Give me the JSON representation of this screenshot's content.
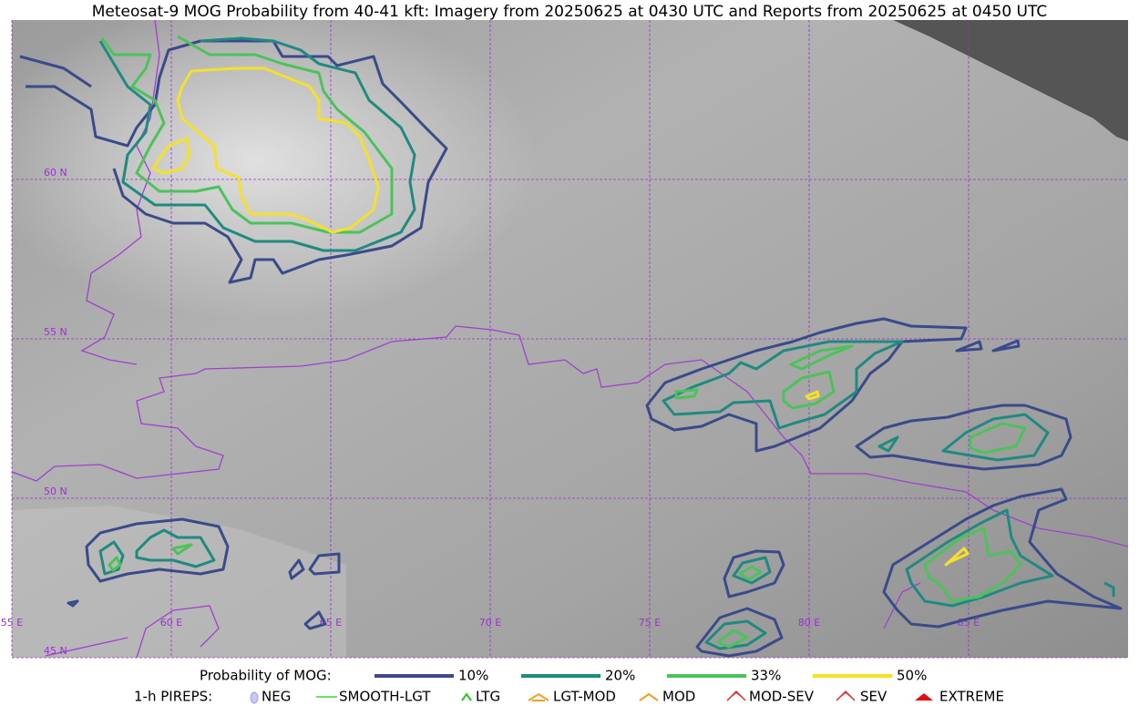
{
  "title": "Meteosat-9 MOG Probability from 40-41 kft: Imagery from 20250625 at 0430 UTC and Reports from 20250625 at 0450 UTC",
  "map": {
    "lat_labels": [
      "60 N",
      "55 N",
      "50 N",
      "45 N"
    ],
    "lon_labels": [
      "55 E",
      "60 E",
      "65 E",
      "70 E",
      "75 E",
      "80 E",
      "85 E"
    ]
  },
  "legend": {
    "probability": {
      "label": "Probability of MOG:",
      "items": [
        {
          "label": "10%",
          "color": "#3a4a8a"
        },
        {
          "label": "20%",
          "color": "#1f8a80"
        },
        {
          "label": "33%",
          "color": "#4cc35a"
        },
        {
          "label": "50%",
          "color": "#f5e02a"
        }
      ]
    },
    "pireps": {
      "label": "1-h PIREPS:",
      "items": [
        "NEG",
        "SMOOTH-LGT",
        "LTG",
        "LGT-MOD",
        "MOD",
        "MOD-SEV",
        "SEV",
        "EXTREME"
      ]
    }
  }
}
